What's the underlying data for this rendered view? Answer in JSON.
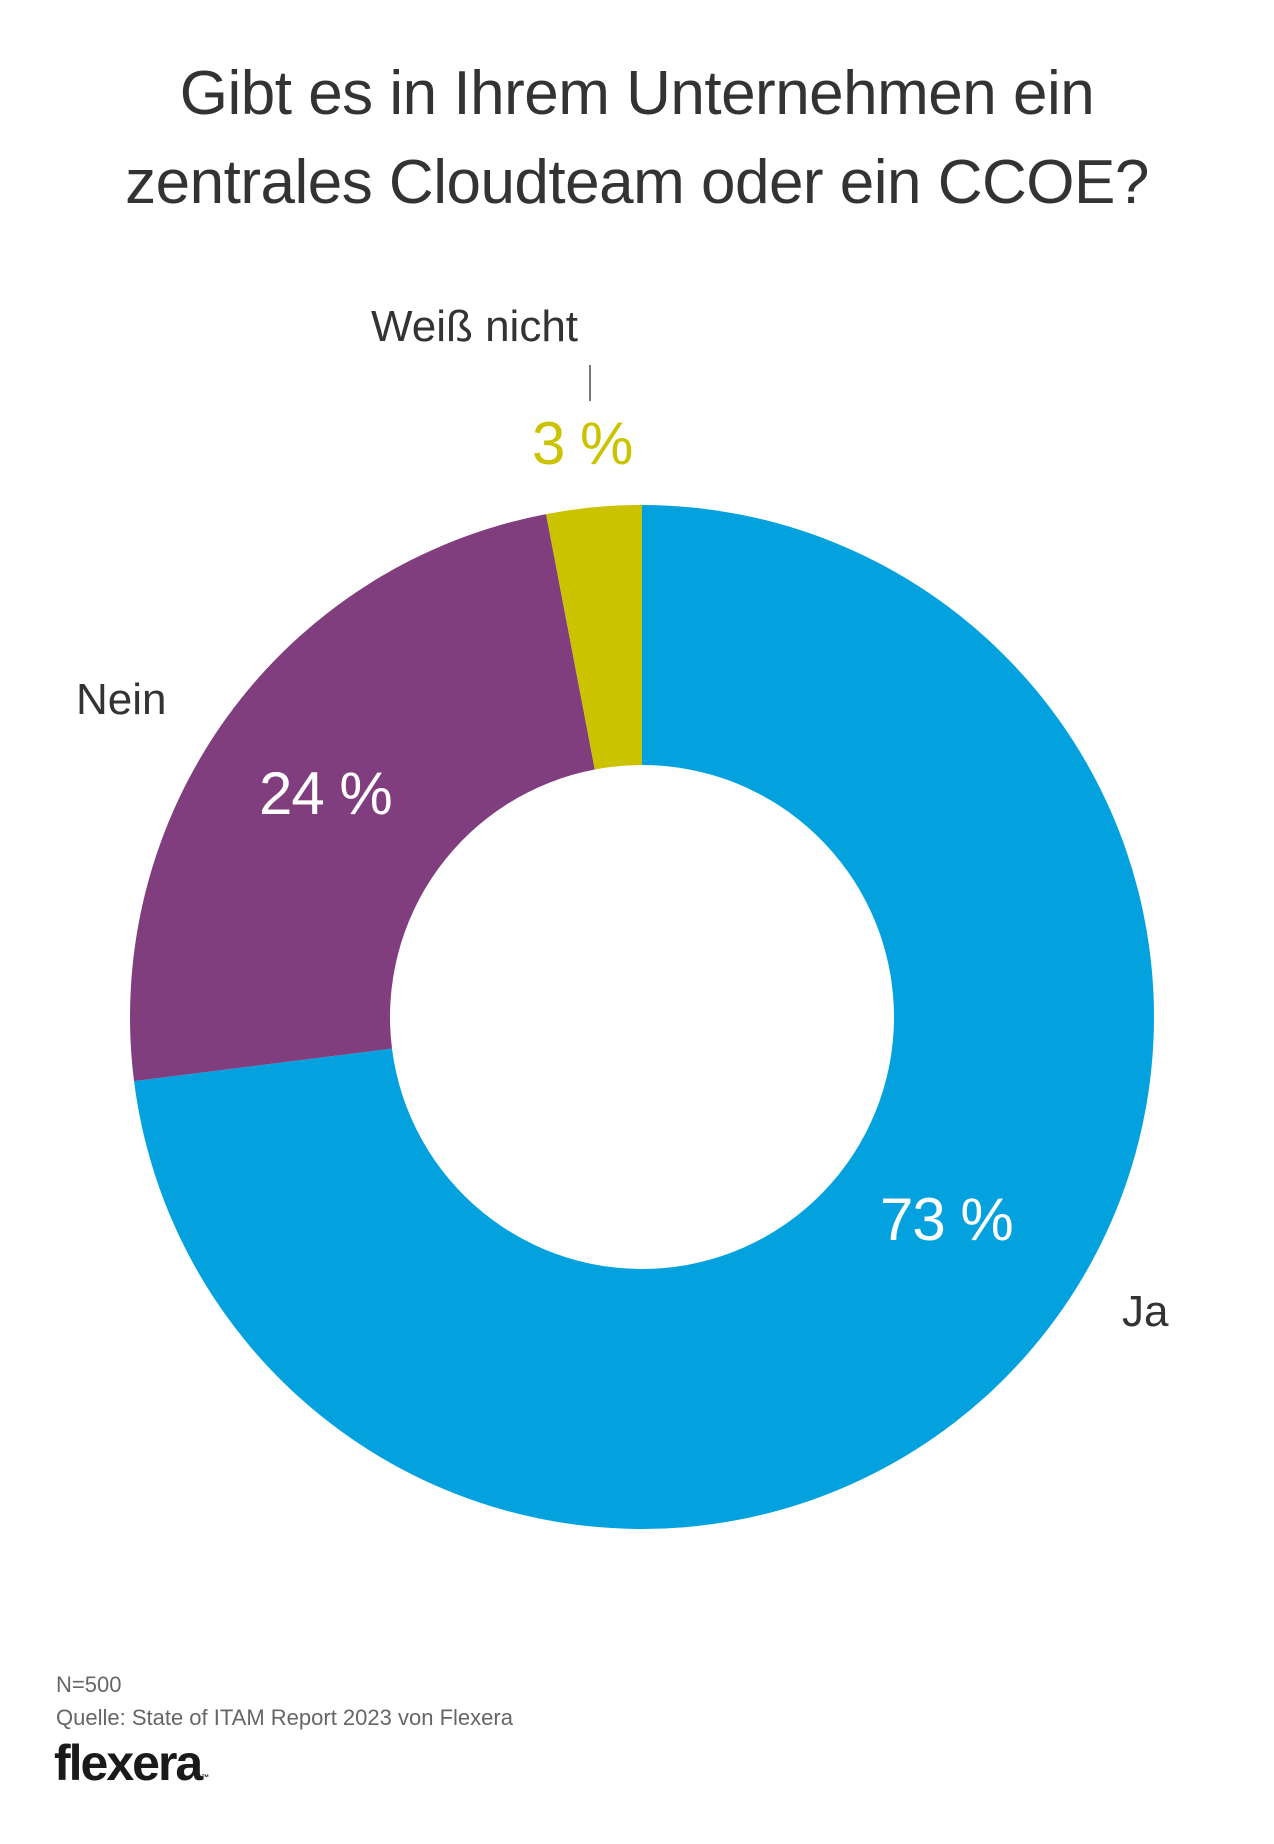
{
  "title": {
    "line1": "Gibt es in Ihrem Unternehmen ein",
    "line2": "zentrales Cloudteam oder ein CCOE?"
  },
  "chart_data": {
    "type": "pie",
    "variant": "donut",
    "title": "Gibt es in Ihrem Unternehmen ein zentrales Cloudteam oder ein CCOE?",
    "categories": [
      "Ja",
      "Nein",
      "Weiß nicht"
    ],
    "values": [
      73,
      24,
      3
    ],
    "unit": "%",
    "value_labels": [
      "73 %",
      "24 %",
      "3 %"
    ],
    "colors": [
      "#03A2DF",
      "#803E7E",
      "#CBC300"
    ],
    "start_angle": "top",
    "direction": "clockwise",
    "legend": "none (direct labels)"
  },
  "footer": {
    "sample": "N=500",
    "source": "Quelle: State of ITAM Report 2023 von Flexera",
    "logo": "flexera",
    "logo_tm": "™"
  }
}
